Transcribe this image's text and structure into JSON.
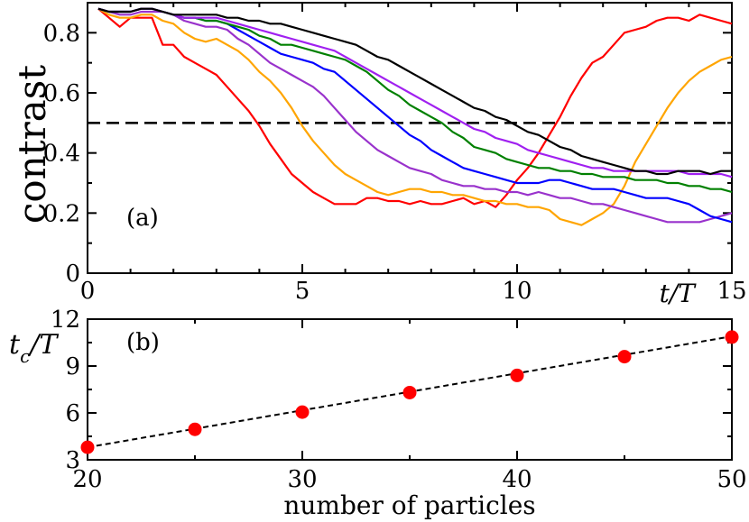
{
  "chart_data": [
    {
      "id": "a",
      "type": "line",
      "panel_label": "(a)",
      "ylabel": "contrast",
      "xlabel": "t/T",
      "xlim": [
        0,
        15
      ],
      "ylim": [
        0,
        0.9
      ],
      "xticks": [
        0,
        5,
        10,
        15
      ],
      "yticks": [
        0,
        0.2,
        0.4,
        0.6,
        0.8
      ],
      "ytick_labels": [
        "0",
        "0.2",
        "0.4",
        "0.6",
        "0.8"
      ],
      "reference_line": {
        "y": 0.5,
        "style": "dashed",
        "color": "#000000"
      },
      "x": [
        0.25,
        0.5,
        0.75,
        1,
        1.25,
        1.5,
        1.75,
        2,
        2.25,
        2.5,
        2.75,
        3,
        3.25,
        3.5,
        3.75,
        4,
        4.25,
        4.5,
        4.75,
        5,
        5.25,
        5.5,
        5.75,
        6,
        6.25,
        6.5,
        6.75,
        7,
        7.25,
        7.5,
        7.75,
        8,
        8.25,
        8.5,
        8.75,
        9,
        9.25,
        9.5,
        9.75,
        10,
        10.25,
        10.5,
        10.75,
        11,
        11.25,
        11.5,
        11.75,
        12,
        12.25,
        12.5,
        12.75,
        13,
        13.25,
        13.5,
        13.75,
        14,
        14.25,
        14.5,
        14.75,
        15
      ],
      "series": [
        {
          "color": "#ff0000",
          "values": [
            0.88,
            0.85,
            0.82,
            0.85,
            0.85,
            0.85,
            0.76,
            0.76,
            0.72,
            0.7,
            0.68,
            0.66,
            0.62,
            0.58,
            0.54,
            0.49,
            0.43,
            0.38,
            0.33,
            0.3,
            0.27,
            0.25,
            0.23,
            0.23,
            0.23,
            0.25,
            0.25,
            0.24,
            0.24,
            0.23,
            0.24,
            0.23,
            0.23,
            0.24,
            0.25,
            0.23,
            0.24,
            0.22,
            0.26,
            0.31,
            0.35,
            0.4,
            0.46,
            0.52,
            0.59,
            0.65,
            0.7,
            0.72,
            0.76,
            0.8,
            0.81,
            0.82,
            0.84,
            0.85,
            0.85,
            0.84,
            0.86,
            0.85,
            0.84,
            0.83
          ]
        },
        {
          "color": "#ffa500",
          "values": [
            0.88,
            0.86,
            0.85,
            0.85,
            0.86,
            0.86,
            0.84,
            0.83,
            0.8,
            0.78,
            0.77,
            0.78,
            0.76,
            0.74,
            0.71,
            0.67,
            0.64,
            0.6,
            0.55,
            0.49,
            0.44,
            0.4,
            0.36,
            0.33,
            0.31,
            0.29,
            0.27,
            0.26,
            0.27,
            0.28,
            0.28,
            0.27,
            0.27,
            0.26,
            0.26,
            0.25,
            0.24,
            0.24,
            0.23,
            0.23,
            0.22,
            0.22,
            0.21,
            0.18,
            0.17,
            0.16,
            0.18,
            0.2,
            0.23,
            0.29,
            0.37,
            0.43,
            0.49,
            0.55,
            0.6,
            0.64,
            0.67,
            0.69,
            0.71,
            0.72
          ]
        },
        {
          "color": "#9932cc",
          "values": [
            0.88,
            0.87,
            0.86,
            0.86,
            0.87,
            0.87,
            0.87,
            0.86,
            0.84,
            0.83,
            0.82,
            0.82,
            0.81,
            0.78,
            0.76,
            0.73,
            0.7,
            0.68,
            0.66,
            0.64,
            0.62,
            0.59,
            0.55,
            0.51,
            0.47,
            0.44,
            0.41,
            0.39,
            0.37,
            0.35,
            0.34,
            0.33,
            0.31,
            0.3,
            0.29,
            0.29,
            0.28,
            0.28,
            0.27,
            0.27,
            0.26,
            0.27,
            0.26,
            0.25,
            0.25,
            0.24,
            0.23,
            0.23,
            0.22,
            0.21,
            0.2,
            0.19,
            0.18,
            0.17,
            0.17,
            0.17,
            0.17,
            0.18,
            0.19,
            0.2
          ]
        },
        {
          "color": "#0000ff",
          "values": [
            0.88,
            0.87,
            0.87,
            0.87,
            0.88,
            0.88,
            0.87,
            0.86,
            0.85,
            0.85,
            0.84,
            0.84,
            0.83,
            0.81,
            0.79,
            0.77,
            0.75,
            0.73,
            0.72,
            0.71,
            0.7,
            0.68,
            0.67,
            0.64,
            0.61,
            0.58,
            0.55,
            0.52,
            0.49,
            0.46,
            0.44,
            0.41,
            0.39,
            0.37,
            0.35,
            0.34,
            0.33,
            0.32,
            0.31,
            0.3,
            0.3,
            0.3,
            0.31,
            0.31,
            0.3,
            0.29,
            0.28,
            0.28,
            0.28,
            0.27,
            0.26,
            0.25,
            0.25,
            0.25,
            0.24,
            0.23,
            0.21,
            0.19,
            0.18,
            0.17
          ]
        },
        {
          "color": "#008000",
          "values": [
            0.88,
            0.87,
            0.87,
            0.87,
            0.88,
            0.88,
            0.87,
            0.86,
            0.85,
            0.85,
            0.84,
            0.84,
            0.83,
            0.82,
            0.81,
            0.79,
            0.78,
            0.76,
            0.76,
            0.75,
            0.74,
            0.73,
            0.72,
            0.71,
            0.69,
            0.67,
            0.64,
            0.61,
            0.59,
            0.56,
            0.54,
            0.52,
            0.5,
            0.47,
            0.45,
            0.42,
            0.41,
            0.4,
            0.38,
            0.37,
            0.36,
            0.35,
            0.35,
            0.34,
            0.34,
            0.33,
            0.33,
            0.32,
            0.32,
            0.32,
            0.31,
            0.31,
            0.31,
            0.3,
            0.3,
            0.29,
            0.29,
            0.28,
            0.28,
            0.27
          ]
        },
        {
          "color": "#a020f0",
          "values": [
            0.88,
            0.87,
            0.87,
            0.87,
            0.88,
            0.88,
            0.87,
            0.86,
            0.85,
            0.85,
            0.85,
            0.85,
            0.84,
            0.83,
            0.82,
            0.81,
            0.8,
            0.79,
            0.78,
            0.77,
            0.76,
            0.75,
            0.74,
            0.72,
            0.7,
            0.68,
            0.66,
            0.64,
            0.62,
            0.6,
            0.58,
            0.56,
            0.54,
            0.52,
            0.5,
            0.48,
            0.47,
            0.45,
            0.44,
            0.43,
            0.41,
            0.4,
            0.39,
            0.38,
            0.37,
            0.36,
            0.35,
            0.35,
            0.34,
            0.34,
            0.34,
            0.34,
            0.34,
            0.34,
            0.34,
            0.33,
            0.33,
            0.33,
            0.33,
            0.32
          ]
        },
        {
          "color": "#000000",
          "values": [
            0.88,
            0.87,
            0.87,
            0.87,
            0.88,
            0.88,
            0.87,
            0.86,
            0.86,
            0.86,
            0.86,
            0.86,
            0.85,
            0.85,
            0.84,
            0.84,
            0.83,
            0.83,
            0.82,
            0.81,
            0.8,
            0.79,
            0.78,
            0.77,
            0.76,
            0.74,
            0.72,
            0.71,
            0.69,
            0.67,
            0.65,
            0.63,
            0.61,
            0.59,
            0.57,
            0.55,
            0.54,
            0.52,
            0.51,
            0.49,
            0.47,
            0.46,
            0.44,
            0.42,
            0.41,
            0.39,
            0.38,
            0.37,
            0.36,
            0.35,
            0.34,
            0.34,
            0.33,
            0.33,
            0.34,
            0.34,
            0.34,
            0.33,
            0.34,
            0.34
          ]
        }
      ]
    },
    {
      "id": "b",
      "type": "scatter",
      "panel_label": "(b)",
      "ylabel": "t_c/T",
      "xlabel": "number of particles",
      "xlim": [
        20,
        50
      ],
      "ylim": [
        3,
        12
      ],
      "xticks": [
        20,
        30,
        40,
        50
      ],
      "yticks": [
        3,
        6,
        9,
        12
      ],
      "point_color": "#ff0000",
      "fit_line": {
        "x": [
          20,
          50
        ],
        "y": [
          3.8,
          10.9
        ],
        "style": "dashed",
        "color": "#000000"
      },
      "x": [
        20,
        25,
        30,
        35,
        40,
        45,
        50
      ],
      "values": [
        3.8,
        4.95,
        6.05,
        7.3,
        8.4,
        9.6,
        10.85
      ]
    }
  ]
}
